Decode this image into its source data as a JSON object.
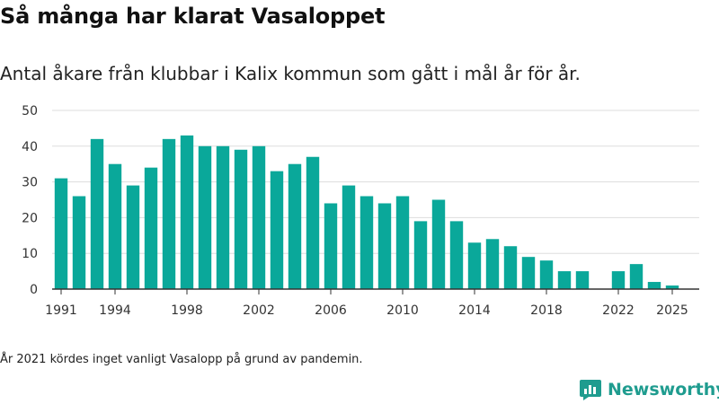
{
  "header": {
    "title": "Så många har klarat Vasaloppet",
    "subtitle": "Antal åkare från klubbar i Kalix kommun som gått i mål år för år."
  },
  "footer": {
    "note": "År 2021 kördes inget vanligt Vasalopp på grund av pandemin.",
    "brand": "Newsworthy"
  },
  "colors": {
    "bar": "#0aa89a",
    "brand": "#1f9c8f",
    "grid": "#dddddd",
    "axis": "#333333"
  },
  "chart_data": {
    "type": "bar",
    "x": [
      1991,
      1992,
      1993,
      1994,
      1995,
      1996,
      1997,
      1998,
      1999,
      2000,
      2001,
      2002,
      2003,
      2004,
      2005,
      2006,
      2007,
      2008,
      2009,
      2010,
      2011,
      2012,
      2013,
      2014,
      2015,
      2016,
      2017,
      2018,
      2019,
      2020,
      2021,
      2022,
      2023,
      2024,
      2025
    ],
    "values": [
      31,
      26,
      42,
      35,
      29,
      34,
      42,
      43,
      40,
      40,
      39,
      40,
      33,
      35,
      37,
      24,
      29,
      26,
      24,
      26,
      19,
      25,
      19,
      13,
      14,
      12,
      9,
      8,
      5,
      5,
      null,
      5,
      7,
      2,
      1
    ],
    "xticks": [
      1991,
      1994,
      1998,
      2002,
      2006,
      2010,
      2014,
      2018,
      2022,
      2025
    ],
    "yticks": [
      0,
      10,
      20,
      30,
      40,
      50
    ],
    "ylim": [
      0,
      50
    ],
    "xlim": [
      1990.5,
      2026.5
    ],
    "grid": true
  }
}
